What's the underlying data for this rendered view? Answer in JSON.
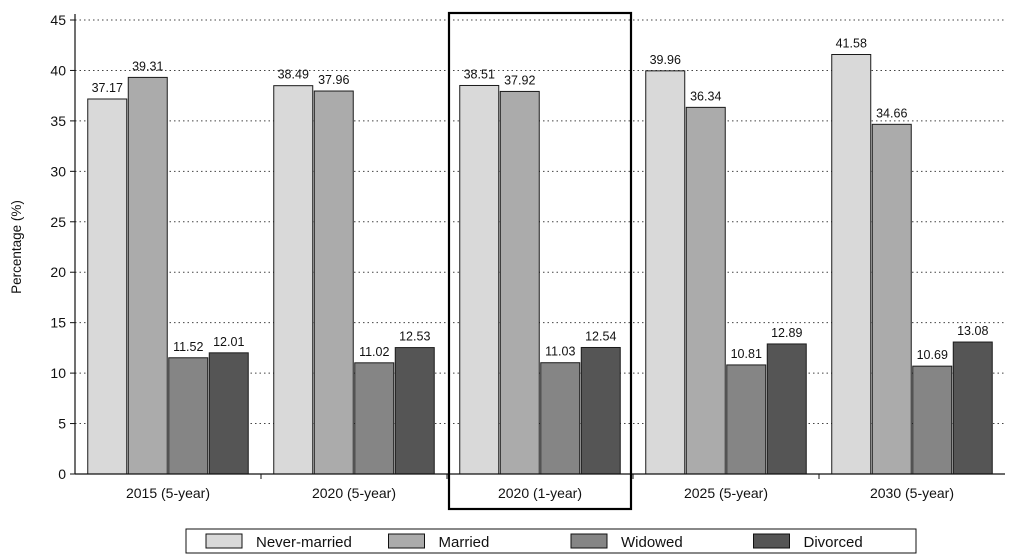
{
  "chart_data": {
    "type": "bar",
    "title": "",
    "xlabel": "",
    "ylabel": "Percentage (%)",
    "ylim": [
      0,
      45
    ],
    "yticks": [
      0,
      5,
      10,
      15,
      20,
      25,
      30,
      35,
      40,
      45
    ],
    "grid": true,
    "legend_position": "bottom",
    "highlighted_category": "2020 (1-year)",
    "categories": [
      "2015 (5-year)",
      "2020 (5-year)",
      "2020 (1-year)",
      "2025 (5-year)",
      "2030 (5-year)"
    ],
    "series": [
      {
        "name": "Never-married",
        "color": "#d9d9d9",
        "values": [
          37.17,
          38.49,
          38.51,
          39.96,
          41.58
        ]
      },
      {
        "name": "Married",
        "color": "#ababab",
        "values": [
          39.31,
          37.96,
          37.92,
          36.34,
          34.66
        ]
      },
      {
        "name": "Widowed",
        "color": "#858585",
        "values": [
          11.52,
          11.02,
          11.03,
          10.81,
          10.69
        ]
      },
      {
        "name": "Divorced",
        "color": "#555555",
        "values": [
          12.01,
          12.53,
          12.54,
          12.89,
          13.08
        ]
      }
    ]
  }
}
